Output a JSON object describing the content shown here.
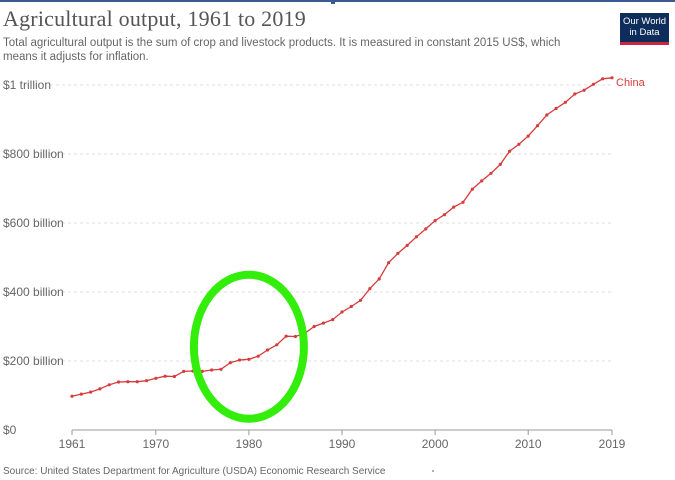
{
  "header": {
    "title": "Agricultural output, 1961 to 2019",
    "subtitle": "Total agricultural output is the sum of crop and livestock products. It is measured in constant 2015 US$, which means it adjusts for inflation.",
    "logo_text": "Our World in Data"
  },
  "footer": {
    "source": "Source: United States Department for Agriculture (USDA) Economic Research Service"
  },
  "colors": {
    "series": "#d73b3b",
    "highlight": "#33ee0a",
    "logo_bg": "#0f2d5a",
    "logo_accent": "#c9273f"
  },
  "chart_data": {
    "type": "line",
    "title": "Agricultural output, 1961 to 2019",
    "xlabel": "",
    "ylabel": "",
    "xlim": [
      1960,
      2021
    ],
    "ylim": [
      0,
      1000000000000
    ],
    "x_ticks": [
      1961,
      1970,
      1980,
      1990,
      2000,
      2010,
      2019
    ],
    "y_ticks": [
      {
        "value": 0,
        "label": "$0"
      },
      {
        "value": 200000000000,
        "label": "$200 billion"
      },
      {
        "value": 400000000000,
        "label": "$400 billion"
      },
      {
        "value": 600000000000,
        "label": "$600 billion"
      },
      {
        "value": 800000000000,
        "label": "$800 billion"
      },
      {
        "value": 1000000000000,
        "label": "$1 trillion"
      }
    ],
    "grid": "horizontal dashed",
    "series": [
      {
        "name": "China",
        "x": [
          1961,
          1962,
          1963,
          1964,
          1965,
          1966,
          1967,
          1968,
          1969,
          1970,
          1971,
          1972,
          1973,
          1974,
          1975,
          1976,
          1977,
          1978,
          1979,
          1980,
          1981,
          1982,
          1983,
          1984,
          1985,
          1986,
          1987,
          1988,
          1989,
          1990,
          1991,
          1992,
          1993,
          1994,
          1995,
          1996,
          1997,
          1998,
          1999,
          2000,
          2001,
          2002,
          2003,
          2004,
          2005,
          2006,
          2007,
          2008,
          2009,
          2010,
          2011,
          2012,
          2013,
          2014,
          2015,
          2016,
          2017,
          2018,
          2019
        ],
        "values": [
          98000000000,
          104000000000,
          110000000000,
          119000000000,
          131000000000,
          139000000000,
          140000000000,
          140000000000,
          143000000000,
          150000000000,
          156000000000,
          155000000000,
          170000000000,
          171000000000,
          170000000000,
          174000000000,
          176000000000,
          195000000000,
          203000000000,
          205000000000,
          214000000000,
          232000000000,
          247000000000,
          272000000000,
          271000000000,
          280000000000,
          300000000000,
          310000000000,
          320000000000,
          342000000000,
          358000000000,
          376000000000,
          410000000000,
          438000000000,
          485000000000,
          512000000000,
          535000000000,
          560000000000,
          583000000000,
          607000000000,
          624000000000,
          646000000000,
          660000000000,
          698000000000,
          722000000000,
          744000000000,
          770000000000,
          808000000000,
          828000000000,
          852000000000,
          882000000000,
          913000000000,
          932000000000,
          950000000000,
          974000000000,
          985000000000,
          1002000000000,
          1018000000000,
          1021000000000
        ]
      }
    ],
    "annotations": [
      {
        "type": "ellipse-highlight",
        "center_year": 1980,
        "center_value": 250000000000
      }
    ]
  }
}
